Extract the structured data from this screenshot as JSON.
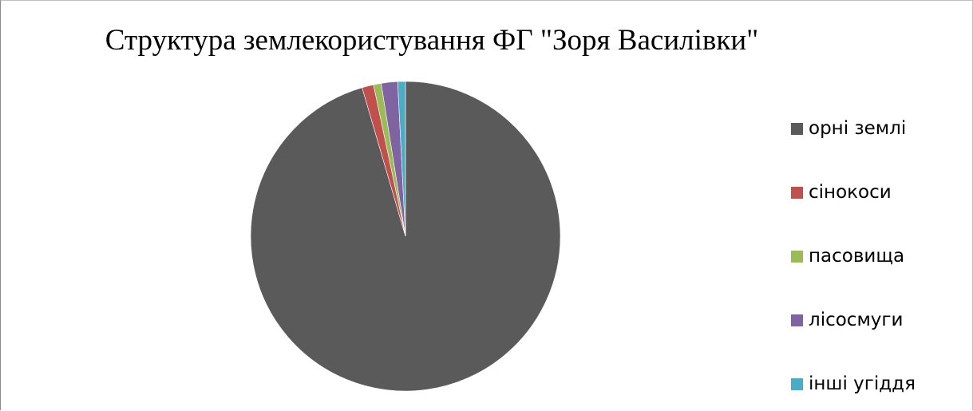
{
  "chart_data": {
    "type": "pie",
    "title": "Структура землекористування ФГ \"Зоря Василівки\"",
    "categories": [
      "орні землі",
      "сінокоси",
      "пасовища",
      "лісосмуги",
      "інші угіддя"
    ],
    "values": [
      95.0,
      1.2,
      0.8,
      1.7,
      0.8
    ],
    "colors": [
      "#5a5a5a",
      "#c0504d",
      "#9bbb59",
      "#8064a2",
      "#4bacc6"
    ],
    "legend": "right"
  }
}
